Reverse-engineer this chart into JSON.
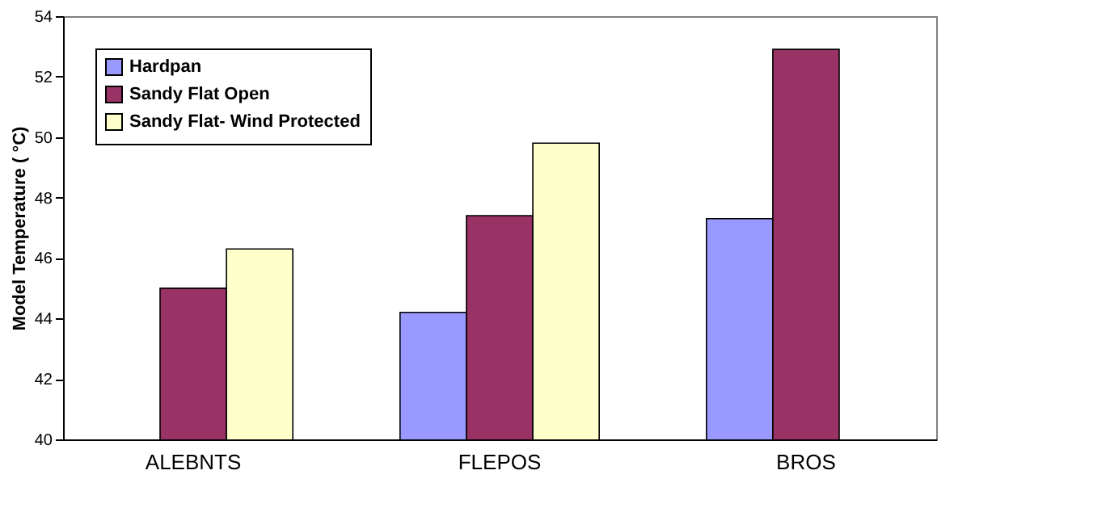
{
  "chart_data": {
    "type": "bar",
    "ylabel": "Model Temperature (  °C)",
    "categories": [
      "ALEBNTS",
      "FLEPOS",
      "BROS"
    ],
    "series": [
      {
        "name": "Hardpan",
        "color": "#9999ff",
        "values": [
          null,
          44.2,
          47.3
        ]
      },
      {
        "name": "Sandy Flat Open",
        "color": "#993366",
        "values": [
          45.0,
          47.4,
          52.9
        ]
      },
      {
        "name": "Sandy Flat- Wind Protected",
        "color": "#ffffcc",
        "values": [
          46.3,
          49.8,
          null
        ]
      }
    ],
    "ylim": [
      40,
      54
    ],
    "yticks": [
      40,
      42,
      44,
      46,
      48,
      50,
      52,
      54
    ],
    "grid": false,
    "legend": "top left"
  }
}
